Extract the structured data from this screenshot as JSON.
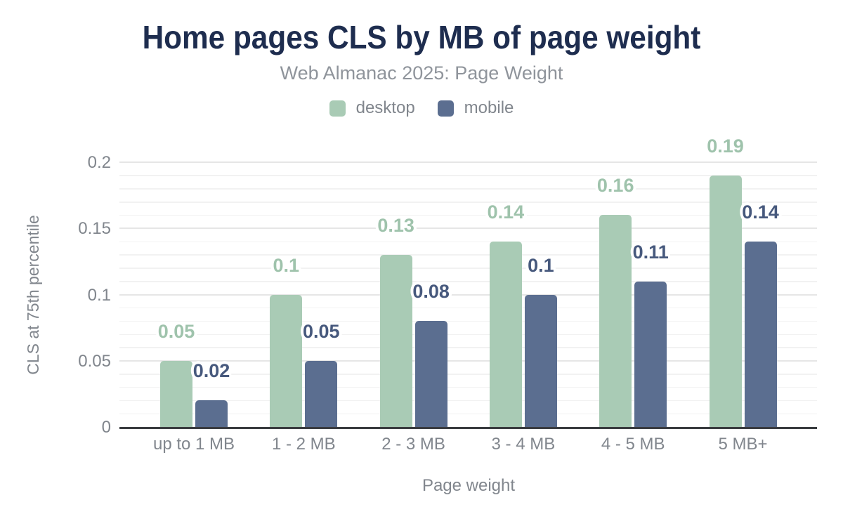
{
  "chart_data": {
    "type": "bar",
    "title": "Home pages CLS by MB of page weight",
    "subtitle": "Web Almanac 2025: Page Weight",
    "xlabel": "Page weight",
    "ylabel": "CLS at 75th percentile",
    "categories": [
      "up to 1 MB",
      "1 - 2 MB",
      "2 - 3 MB",
      "3 - 4 MB",
      "4 - 5 MB",
      "5 MB+"
    ],
    "series": [
      {
        "name": "desktop",
        "color": "#a9cbb5",
        "label_color": "#9fc3ac",
        "values": [
          0.05,
          0.1,
          0.13,
          0.14,
          0.16,
          0.19
        ],
        "labels": [
          "0.05",
          "0.1",
          "0.13",
          "0.14",
          "0.16",
          "0.19"
        ]
      },
      {
        "name": "mobile",
        "color": "#5b6e90",
        "label_color": "#47597d",
        "values": [
          0.02,
          0.05,
          0.08,
          0.1,
          0.11,
          0.14
        ],
        "labels": [
          "0.02",
          "0.05",
          "0.08",
          "0.1",
          "0.11",
          "0.14"
        ]
      }
    ],
    "ylim": [
      0,
      0.2
    ],
    "yticks": [
      {
        "value": 0,
        "label": "0"
      },
      {
        "value": 0.05,
        "label": "0.05"
      },
      {
        "value": 0.1,
        "label": "0.1"
      },
      {
        "value": 0.15,
        "label": "0.15"
      },
      {
        "value": 0.2,
        "label": "0.2"
      }
    ],
    "minor_tick_step": 0.01,
    "grid": true,
    "legend_position": "top",
    "title_color": "#1e2d4f",
    "subtitle_color": "#8f949b",
    "axis_text_color": "#81868d"
  }
}
